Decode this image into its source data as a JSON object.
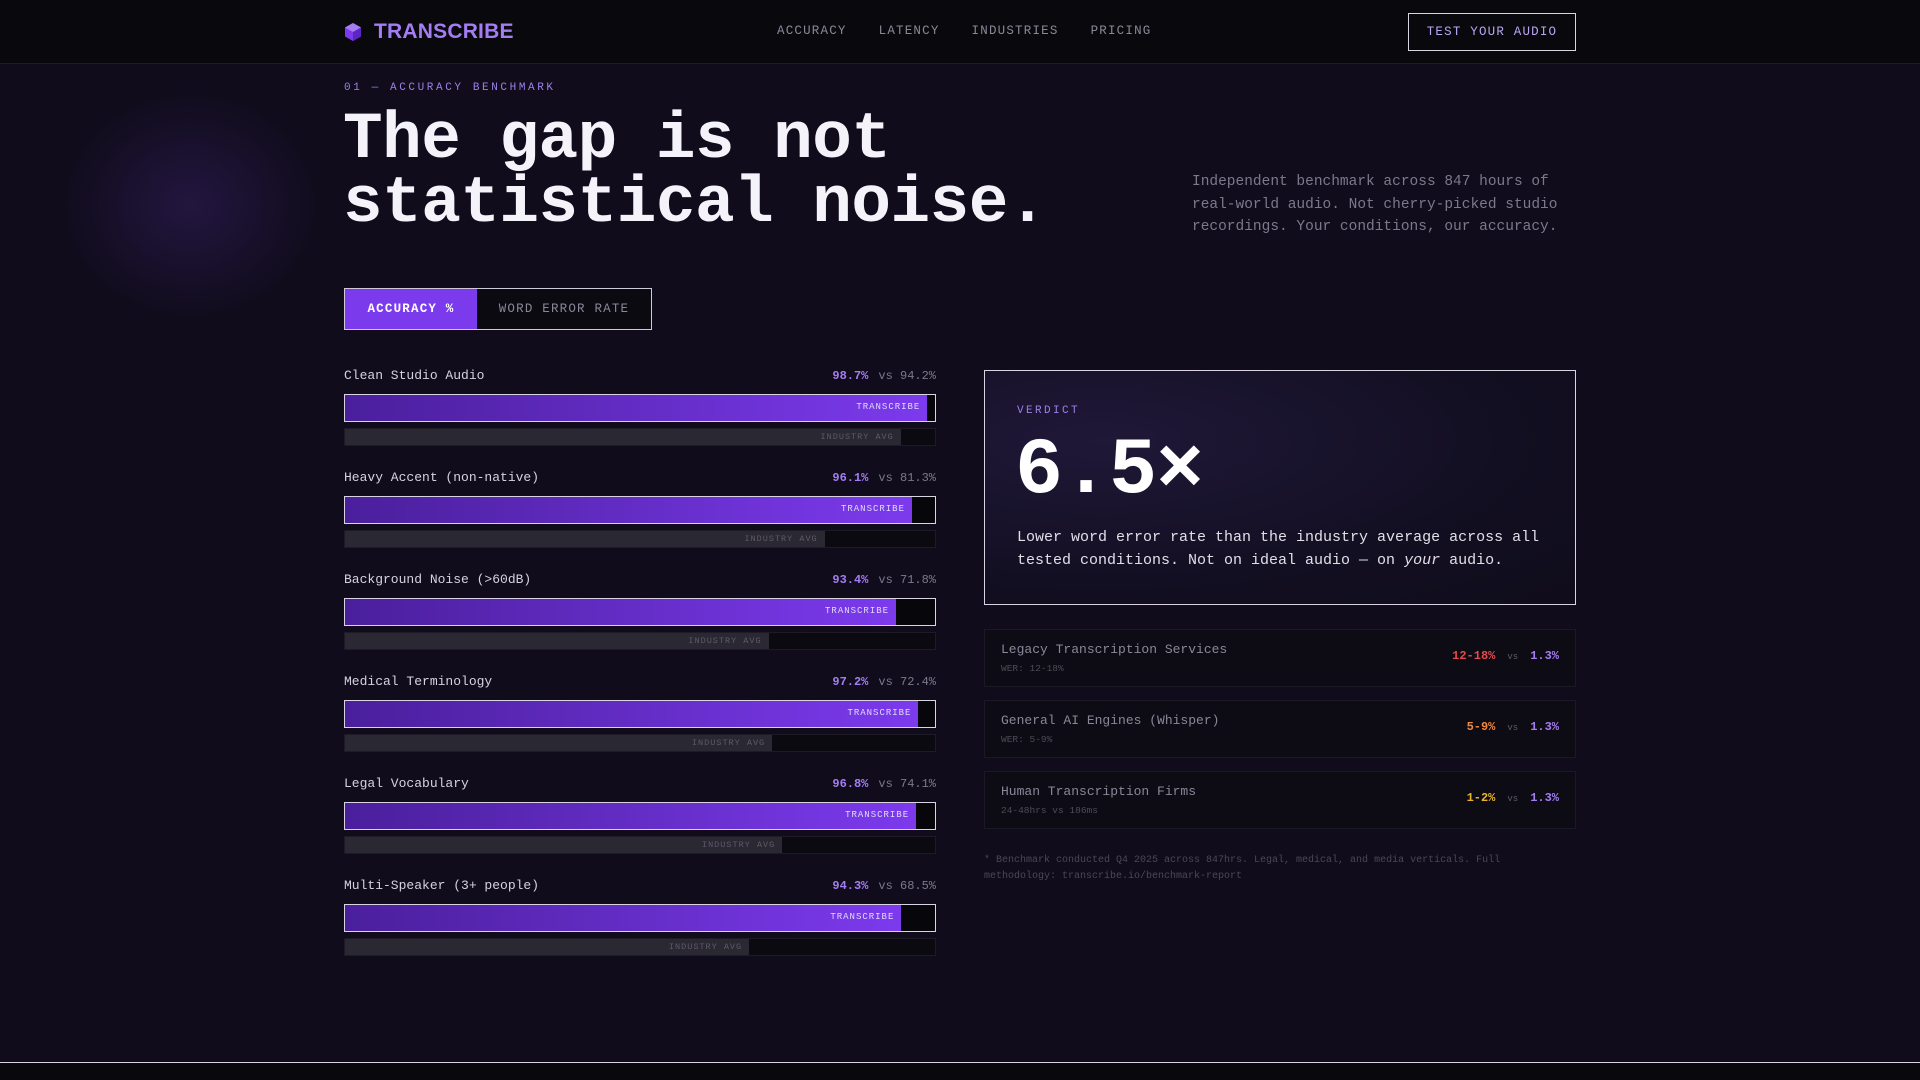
{
  "nav": {
    "brand": "TRANSCRIBE",
    "links": [
      "ACCURACY",
      "LATENCY",
      "INDUSTRIES",
      "PRICING"
    ],
    "cta": "TEST YOUR AUDIO"
  },
  "hero": {
    "eyebrow": "01 — ACCURACY BENCHMARK",
    "headline_line1": "The gap is not",
    "headline_line2": "statistical noise.",
    "intro": "Independent benchmark across 847 hours of real-world audio. Not cherry-picked studio recordings. Your conditions, our accuracy."
  },
  "toggle": {
    "active": "ACCURACY %",
    "inactive": "WORD ERROR RATE"
  },
  "bar_labels": {
    "ours": "TRANSCRIBE",
    "industry": "INDUSTRY AVG"
  },
  "bars": [
    {
      "label": "Clean Studio Audio",
      "ours": "98.7%",
      "vs": "vs 94.2%",
      "ours_pct": 98.7,
      "industry_pct": 94.2
    },
    {
      "label": "Heavy Accent (non-native)",
      "ours": "96.1%",
      "vs": "vs 81.3%",
      "ours_pct": 96.1,
      "industry_pct": 81.3
    },
    {
      "label": "Background Noise (>60dB)",
      "ours": "93.4%",
      "vs": "vs 71.8%",
      "ours_pct": 93.4,
      "industry_pct": 71.8
    },
    {
      "label": "Medical Terminology",
      "ours": "97.2%",
      "vs": "vs 72.4%",
      "ours_pct": 97.2,
      "industry_pct": 72.4
    },
    {
      "label": "Legal Vocabulary",
      "ours": "96.8%",
      "vs": "vs 74.1%",
      "ours_pct": 96.8,
      "industry_pct": 74.1
    },
    {
      "label": "Multi-Speaker (3+ people)",
      "ours": "94.3%",
      "vs": "vs 68.5%",
      "ours_pct": 94.3,
      "industry_pct": 68.5
    }
  ],
  "verdict": {
    "eyebrow": "VERDICT",
    "big": "6.5×",
    "text_before": "Lower word error rate than the industry average across all tested conditions. Not on ideal audio — on ",
    "text_em": "your",
    "text_after": " audio."
  },
  "comparisons": [
    {
      "name": "Legacy Transcription Services",
      "sub": "WER: 12-18%",
      "theirs": "12-18%",
      "vs": "vs",
      "ours": "1.3%",
      "color": "#e5484d"
    },
    {
      "name": "General AI Engines (Whisper)",
      "sub": "WER: 5-9%",
      "theirs": "5-9%",
      "vs": "vs",
      "ours": "1.3%",
      "color": "#f0883e"
    },
    {
      "name": "Human Transcription Firms",
      "sub": "24-48hrs vs 186ms",
      "theirs": "1-2%",
      "vs": "vs",
      "ours": "1.3%",
      "color": "#e8b429"
    }
  ],
  "footnote": "* Benchmark conducted Q4 2025 across 847hrs. Legal, medical, and media verticals. Full methodology: transcribe.io/benchmark-report",
  "colors": {
    "accent": "#7c3aed",
    "accent_text": "#a47df3",
    "background": "#100c1c"
  }
}
